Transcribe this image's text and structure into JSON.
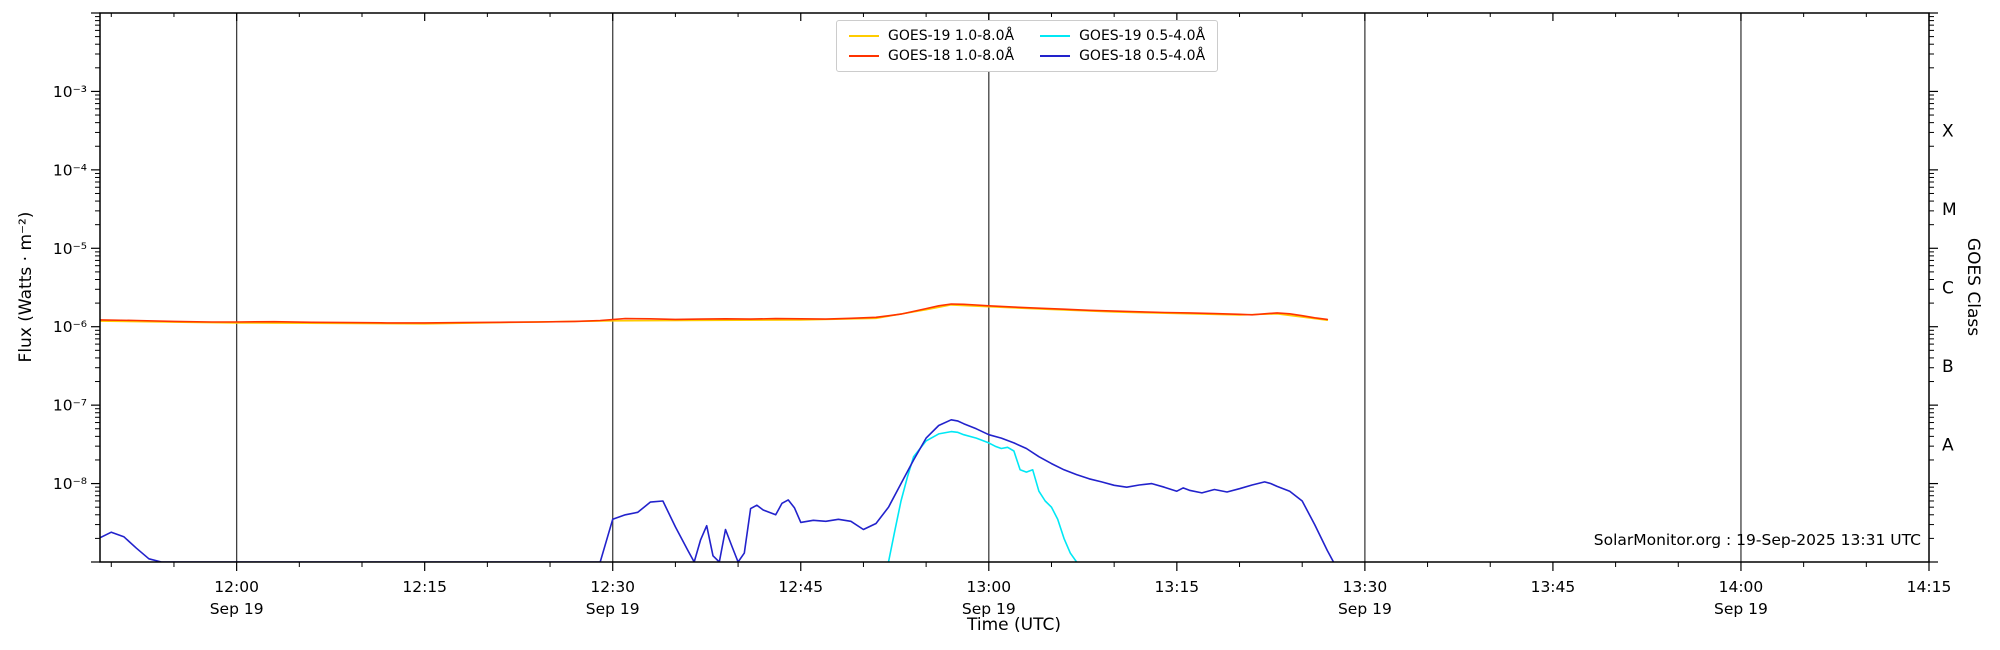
{
  "page": {
    "background": "#ffffff"
  },
  "chart_data": {
    "type": "line",
    "title": "",
    "xlabel": "Time (UTC)",
    "ylabel": "Flux (Watts · m⁻²)",
    "y2label": "GOES Class",
    "annotation": "SolarMonitor.org : 19-Sep-2025 13:31 UTC",
    "legend": {
      "columns": 2,
      "order": "column-major",
      "border_color": "#cccccc"
    },
    "grid": {
      "vertical_gridlines_minutes": [
        0,
        30,
        60,
        90,
        120
      ],
      "color": "#404040"
    },
    "x_axis": {
      "unit": "minutes from 12:00 UTC, Sep 19",
      "min": -10.9,
      "max": 135,
      "minor_tick_step": 5,
      "major_ticks": [
        {
          "t": 0,
          "label": "12:00",
          "date": "Sep 19"
        },
        {
          "t": 15,
          "label": "12:15",
          "date": ""
        },
        {
          "t": 30,
          "label": "12:30",
          "date": "Sep 19"
        },
        {
          "t": 45,
          "label": "12:45",
          "date": ""
        },
        {
          "t": 60,
          "label": "13:00",
          "date": "Sep 19"
        },
        {
          "t": 75,
          "label": "13:15",
          "date": ""
        },
        {
          "t": 90,
          "label": "13:30",
          "date": "Sep 19"
        },
        {
          "t": 105,
          "label": "13:45",
          "date": ""
        },
        {
          "t": 120,
          "label": "14:00",
          "date": "Sep 19"
        },
        {
          "t": 135,
          "label": "14:15",
          "date": ""
        }
      ]
    },
    "y_axis": {
      "scale": "log",
      "ylim": [
        1e-09,
        0.01
      ],
      "major_ticks": [
        {
          "value": 0.01,
          "label": ""
        },
        {
          "value": 0.001,
          "label": "10⁻³"
        },
        {
          "value": 0.0001,
          "label": "10⁻⁴"
        },
        {
          "value": 1e-05,
          "label": "10⁻⁵"
        },
        {
          "value": 1e-06,
          "label": "10⁻⁶"
        },
        {
          "value": 1e-07,
          "label": "10⁻⁷"
        },
        {
          "value": 1e-08,
          "label": "10⁻⁸"
        },
        {
          "value": 1e-09,
          "label": ""
        }
      ]
    },
    "goes_classes": [
      {
        "label": "X",
        "value": 0.000316
      },
      {
        "label": "M",
        "value": 3.16e-05
      },
      {
        "label": "C",
        "value": 3.16e-06
      },
      {
        "label": "B",
        "value": 3.16e-07
      },
      {
        "label": "A",
        "value": 3.16e-08
      }
    ],
    "series": [
      {
        "name": "GOES-19 1.0-8.0Å",
        "color": "#ffcc00",
        "points": [
          [
            -11,
            1.18e-06
          ],
          [
            0,
            1.12e-06
          ],
          [
            15,
            1.09e-06
          ],
          [
            30,
            1.19e-06
          ],
          [
            45,
            1.22e-06
          ],
          [
            51,
            1.28e-06
          ],
          [
            55,
            1.65e-06
          ],
          [
            57,
            1.9e-06
          ],
          [
            60,
            1.8e-06
          ],
          [
            65,
            1.66e-06
          ],
          [
            70,
            1.54e-06
          ],
          [
            75,
            1.48e-06
          ],
          [
            80,
            1.41e-06
          ],
          [
            83,
            1.46e-06
          ],
          [
            86,
            1.27e-06
          ],
          [
            87,
            1.21e-06
          ]
        ]
      },
      {
        "name": "GOES-18 1.0-8.0Å",
        "color": "#ff3300",
        "points": [
          [
            -11,
            1.22e-06
          ],
          [
            -8,
            1.2e-06
          ],
          [
            -5,
            1.17e-06
          ],
          [
            -2,
            1.15e-06
          ],
          [
            0,
            1.15e-06
          ],
          [
            3,
            1.16e-06
          ],
          [
            6,
            1.14e-06
          ],
          [
            9,
            1.13e-06
          ],
          [
            12,
            1.12e-06
          ],
          [
            15,
            1.12e-06
          ],
          [
            18,
            1.13e-06
          ],
          [
            21,
            1.14e-06
          ],
          [
            24,
            1.15e-06
          ],
          [
            27,
            1.17e-06
          ],
          [
            29,
            1.2e-06
          ],
          [
            31,
            1.27e-06
          ],
          [
            33,
            1.26e-06
          ],
          [
            35,
            1.24e-06
          ],
          [
            37,
            1.25e-06
          ],
          [
            39,
            1.26e-06
          ],
          [
            41,
            1.25e-06
          ],
          [
            43,
            1.27e-06
          ],
          [
            45,
            1.26e-06
          ],
          [
            47,
            1.25e-06
          ],
          [
            49,
            1.28e-06
          ],
          [
            51,
            1.32e-06
          ],
          [
            53,
            1.45e-06
          ],
          [
            55,
            1.7e-06
          ],
          [
            56,
            1.85e-06
          ],
          [
            57,
            1.95e-06
          ],
          [
            58,
            1.93e-06
          ],
          [
            59,
            1.89e-06
          ],
          [
            60,
            1.85e-06
          ],
          [
            62,
            1.78e-06
          ],
          [
            64,
            1.72e-06
          ],
          [
            66,
            1.67e-06
          ],
          [
            68,
            1.62e-06
          ],
          [
            70,
            1.58e-06
          ],
          [
            72,
            1.55e-06
          ],
          [
            74,
            1.52e-06
          ],
          [
            76,
            1.5e-06
          ],
          [
            78,
            1.47e-06
          ],
          [
            80,
            1.44e-06
          ],
          [
            81,
            1.42e-06
          ],
          [
            82,
            1.46e-06
          ],
          [
            83,
            1.5e-06
          ],
          [
            84,
            1.46e-06
          ],
          [
            85,
            1.38e-06
          ],
          [
            86,
            1.3e-06
          ],
          [
            87,
            1.24e-06
          ]
        ]
      },
      {
        "name": "GOES-19 0.5-4.0Å",
        "color": "#00e8f5",
        "points": [
          [
            52,
            1e-09
          ],
          [
            52.5,
            2.5e-09
          ],
          [
            53,
            6e-09
          ],
          [
            53.5,
            1.2e-08
          ],
          [
            54,
            2.2e-08
          ],
          [
            55,
            3.5e-08
          ],
          [
            56,
            4.3e-08
          ],
          [
            57,
            4.6e-08
          ],
          [
            57.5,
            4.5e-08
          ],
          [
            58,
            4.2e-08
          ],
          [
            59,
            3.8e-08
          ],
          [
            60,
            3.3e-08
          ],
          [
            60.5,
            3e-08
          ],
          [
            61,
            2.8e-08
          ],
          [
            61.5,
            2.9e-08
          ],
          [
            62,
            2.6e-08
          ],
          [
            62.5,
            1.5e-08
          ],
          [
            63,
            1.4e-08
          ],
          [
            63.5,
            1.5e-08
          ],
          [
            64,
            8e-09
          ],
          [
            64.5,
            6e-09
          ],
          [
            65,
            5e-09
          ],
          [
            65.5,
            3.5e-09
          ],
          [
            66,
            2e-09
          ],
          [
            66.5,
            1.3e-09
          ],
          [
            67,
            1e-09
          ]
        ]
      },
      {
        "name": "GOES-18 0.5-4.0Å",
        "color": "#2222cc",
        "points": [
          [
            -11,
            2e-09
          ],
          [
            -10,
            2.4e-09
          ],
          [
            -9,
            2.1e-09
          ],
          [
            -8,
            1.5e-09
          ],
          [
            -7,
            1.1e-09
          ],
          [
            -6,
            1e-09
          ],
          [
            29,
            1e-09
          ],
          [
            30,
            3.5e-09
          ],
          [
            31,
            4e-09
          ],
          [
            32,
            4.3e-09
          ],
          [
            33,
            5.8e-09
          ],
          [
            34,
            6e-09
          ],
          [
            35,
            2.8e-09
          ],
          [
            36,
            1.4e-09
          ],
          [
            36.5,
            1e-09
          ],
          [
            37,
            1.9e-09
          ],
          [
            37.5,
            2.9e-09
          ],
          [
            38,
            1.2e-09
          ],
          [
            38.5,
            1e-09
          ],
          [
            39,
            2.6e-09
          ],
          [
            39.5,
            1.6e-09
          ],
          [
            40,
            1e-09
          ],
          [
            40.5,
            1.3e-09
          ],
          [
            41,
            4.8e-09
          ],
          [
            41.5,
            5.3e-09
          ],
          [
            42,
            4.6e-09
          ],
          [
            43,
            4e-09
          ],
          [
            43.5,
            5.6e-09
          ],
          [
            44,
            6.2e-09
          ],
          [
            44.5,
            4.9e-09
          ],
          [
            45,
            3.2e-09
          ],
          [
            46,
            3.4e-09
          ],
          [
            47,
            3.3e-09
          ],
          [
            48,
            3.5e-09
          ],
          [
            49,
            3.3e-09
          ],
          [
            50,
            2.6e-09
          ],
          [
            51,
            3.1e-09
          ],
          [
            52,
            5e-09
          ],
          [
            53,
            1e-08
          ],
          [
            54,
            2e-08
          ],
          [
            55,
            3.8e-08
          ],
          [
            56,
            5.5e-08
          ],
          [
            57,
            6.5e-08
          ],
          [
            57.5,
            6.3e-08
          ],
          [
            58,
            5.8e-08
          ],
          [
            59,
            5e-08
          ],
          [
            60,
            4.2e-08
          ],
          [
            61,
            3.8e-08
          ],
          [
            62,
            3.3e-08
          ],
          [
            63,
            2.8e-08
          ],
          [
            64,
            2.2e-08
          ],
          [
            65,
            1.8e-08
          ],
          [
            66,
            1.5e-08
          ],
          [
            67,
            1.3e-08
          ],
          [
            68,
            1.15e-08
          ],
          [
            69,
            1.05e-08
          ],
          [
            70,
            9.5e-09
          ],
          [
            71,
            9e-09
          ],
          [
            72,
            9.6e-09
          ],
          [
            73,
            1e-08
          ],
          [
            74,
            9e-09
          ],
          [
            75,
            8e-09
          ],
          [
            75.5,
            8.8e-09
          ],
          [
            76,
            8.2e-09
          ],
          [
            77,
            7.6e-09
          ],
          [
            78,
            8.4e-09
          ],
          [
            79,
            7.8e-09
          ],
          [
            80,
            8.6e-09
          ],
          [
            81,
            9.6e-09
          ],
          [
            82,
            1.05e-08
          ],
          [
            82.5,
            1e-08
          ],
          [
            83,
            9.2e-09
          ],
          [
            84,
            8e-09
          ],
          [
            85,
            6e-09
          ],
          [
            86,
            3e-09
          ],
          [
            87,
            1.4e-09
          ],
          [
            87.5,
            1e-09
          ]
        ]
      }
    ]
  }
}
